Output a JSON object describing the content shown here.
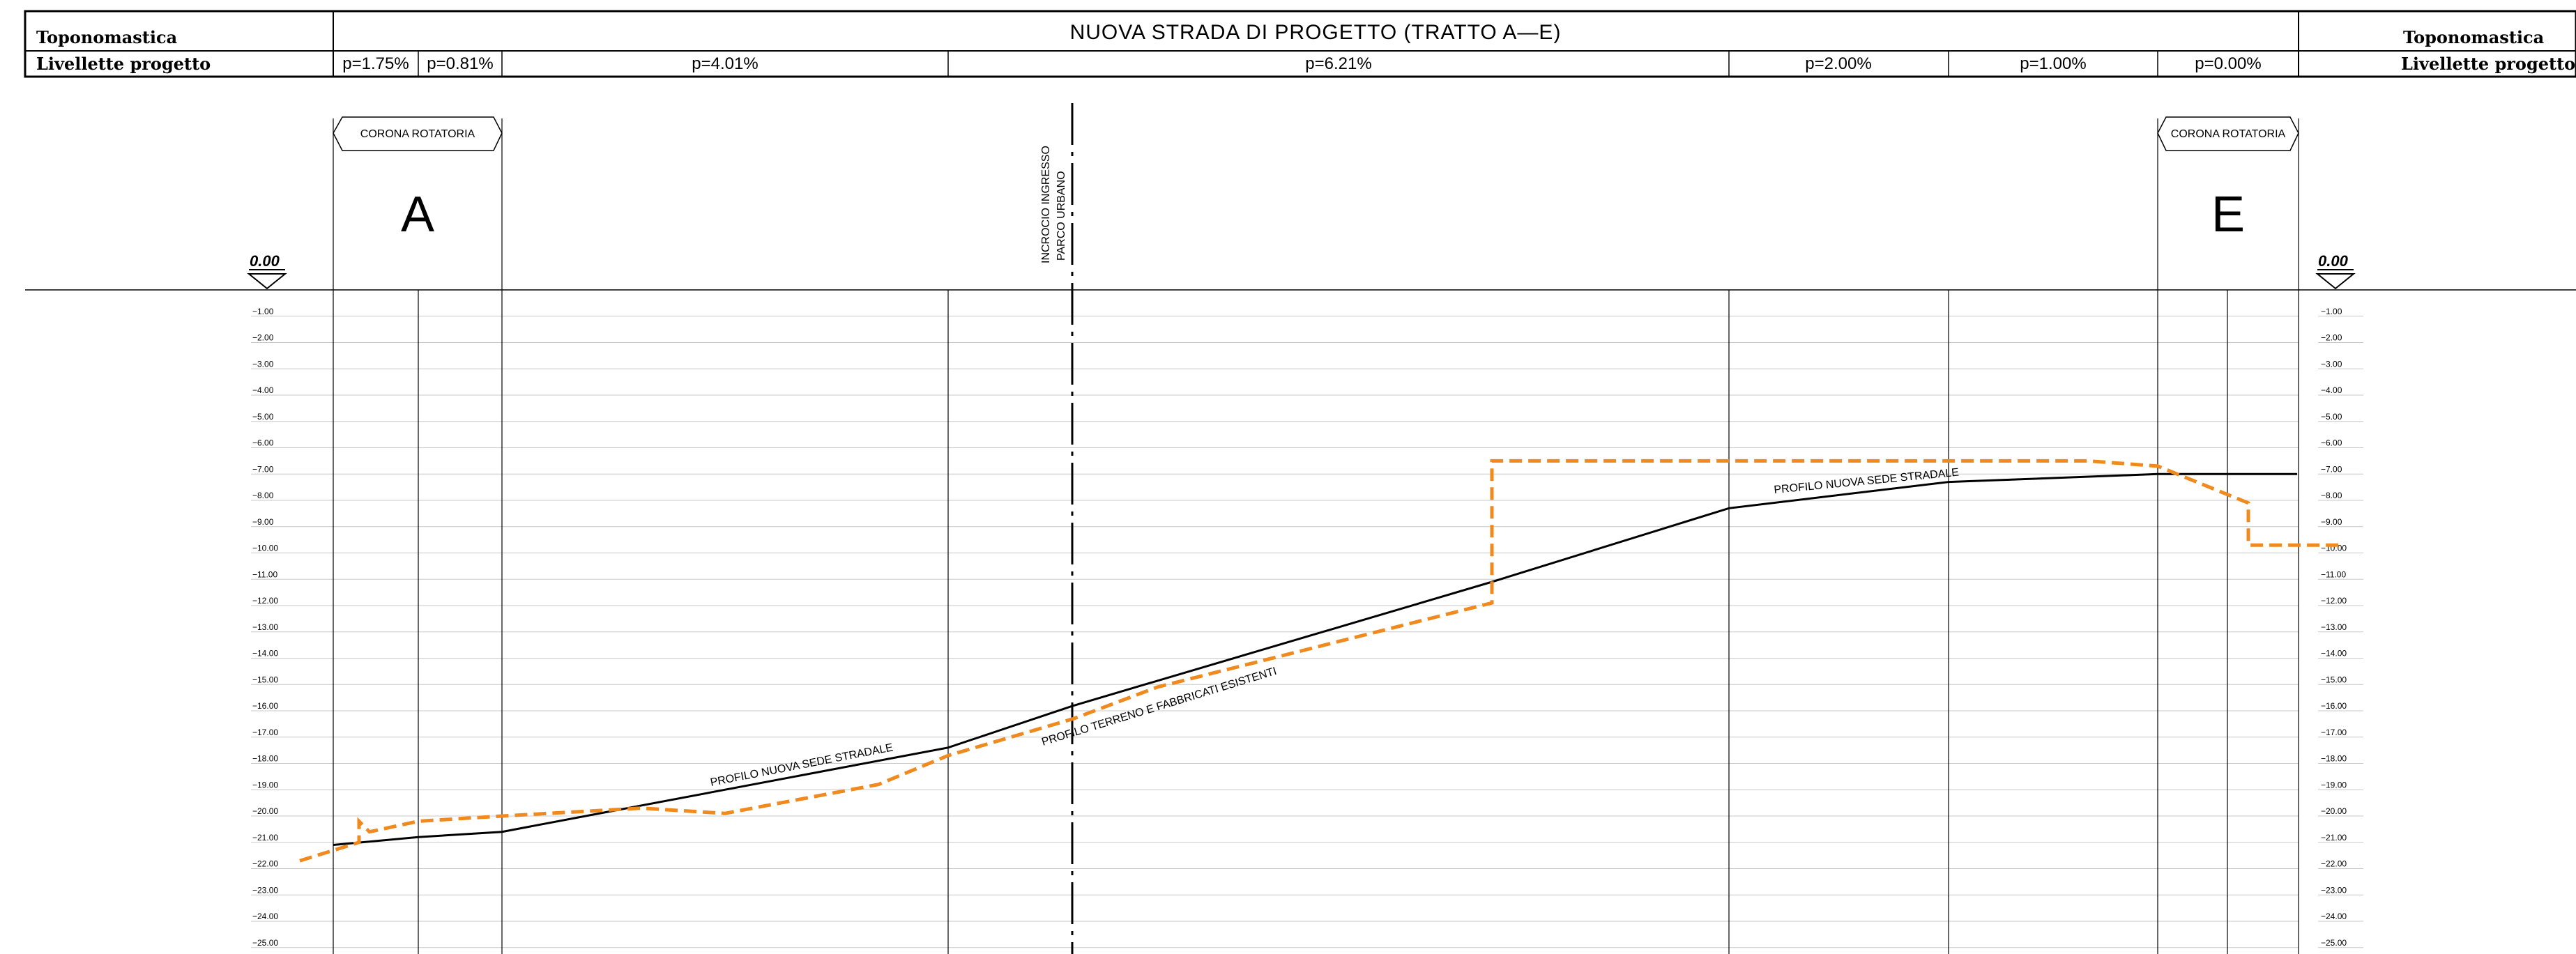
{
  "header": {
    "left_row1": "Toponomastica",
    "left_row2": "Livellette progetto",
    "right_row1": "Toponomastica",
    "right_row2": "Livellette progetto",
    "title": "NUOVA STRADA DI PROGETTO (TRATTO A—E)",
    "slopes": [
      "p=1.75%",
      "p=0.81%",
      "p=4.01%",
      "p=6.21%",
      "p=2.00%",
      "p=1.00%",
      "p=0.00%"
    ]
  },
  "labels": {
    "corona_left": "CORONA ROTATORIA",
    "corona_right": "CORONA ROTATORIA",
    "point_a": "A",
    "point_e": "E",
    "incrocio_line1": "INCROCIO INGRESSO",
    "incrocio_line2": "PARCO URBANO",
    "datum_left": "0.00",
    "datum_right": "0.00",
    "profilo_nuovo_1": "PROFILO NUOVA SEDE STRADALE",
    "profilo_nuovo_2": "PROFILO NUOVA SEDE STRADALE",
    "profilo_terreno": "PROFILO TERRENO E FABBRICATI ESISTENTI"
  },
  "colors": {
    "terrain": "#f08a1e",
    "road": "#000000",
    "grid": "#c8c8c8"
  },
  "chart_data": {
    "type": "line",
    "ylim": [
      -25,
      0
    ],
    "elevation_ticks": [
      "-1.00",
      "-2.00",
      "-3.00",
      "-4.00",
      "-5.00",
      "-6.00",
      "-7.00",
      "-8.00",
      "-9.00",
      "-10.00",
      "-11.00",
      "-12.00",
      "-13.00",
      "-14.00",
      "-15.00",
      "-16.00",
      "-17.00",
      "-18.00",
      "-19.00",
      "-20.00",
      "-21.00",
      "-22.00",
      "-23.00",
      "-24.00",
      "-25.00"
    ],
    "series": [
      {
        "key": "road",
        "label": "PROFILO NUOVA SEDE STRADALE",
        "style": "solid",
        "points": [
          [
            478,
            -21.1
          ],
          [
            600,
            -20.8
          ],
          [
            720,
            -20.6
          ],
          [
            1360,
            -17.4
          ],
          [
            1540,
            -15.8
          ],
          [
            2140,
            -11.1
          ],
          [
            2480,
            -8.3
          ],
          [
            2795,
            -7.3
          ],
          [
            3095,
            -7.0
          ],
          [
            3295,
            -7.0
          ]
        ]
      },
      {
        "key": "terrain",
        "label": "PROFILO TERRENO E FABBRICATI ESISTENTI",
        "style": "dashed",
        "points": [
          [
            430,
            -21.7
          ],
          [
            515,
            -21.0
          ],
          [
            515,
            -20.2
          ],
          [
            530,
            -20.6
          ],
          [
            600,
            -20.2
          ],
          [
            720,
            -20.0
          ],
          [
            920,
            -19.7
          ],
          [
            1040,
            -19.9
          ],
          [
            1260,
            -18.8
          ],
          [
            1360,
            -17.7
          ],
          [
            1540,
            -16.3
          ],
          [
            1660,
            -15.1
          ],
          [
            2140,
            -11.9
          ],
          [
            2140,
            -6.5
          ],
          [
            2995,
            -6.5
          ],
          [
            3095,
            -6.7
          ],
          [
            3225,
            -8.1
          ],
          [
            3225,
            -9.7
          ],
          [
            3355,
            -9.7
          ]
        ]
      }
    ]
  }
}
